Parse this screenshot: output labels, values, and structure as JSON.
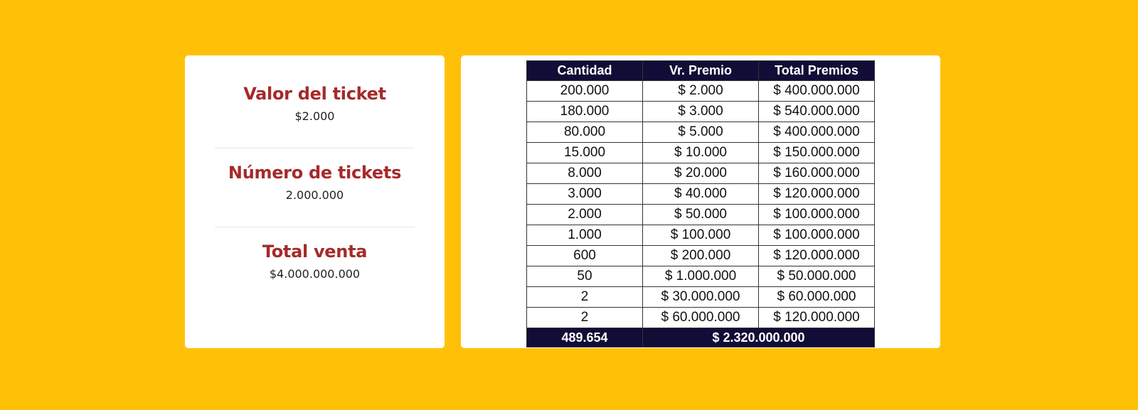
{
  "summary": [
    {
      "title": "Valor del ticket",
      "value": "$2.000"
    },
    {
      "title": "Número de tickets",
      "value": "2.000.000"
    },
    {
      "title": "Total venta",
      "value": "$4.000.000.000"
    }
  ],
  "table": {
    "headers": [
      "Cantidad",
      "Vr. Premio",
      "Total Premios"
    ],
    "rows": [
      [
        "200.000",
        "$ 2.000",
        "$ 400.000.000"
      ],
      [
        "180.000",
        "$ 3.000",
        "$ 540.000.000"
      ],
      [
        "80.000",
        "$ 5.000",
        "$ 400.000.000"
      ],
      [
        "15.000",
        "$ 10.000",
        "$ 150.000.000"
      ],
      [
        "8.000",
        "$ 20.000",
        "$ 160.000.000"
      ],
      [
        "3.000",
        "$ 40.000",
        "$ 120.000.000"
      ],
      [
        "2.000",
        "$ 50.000",
        "$ 100.000.000"
      ],
      [
        "1.000",
        "$ 100.000",
        "$ 100.000.000"
      ],
      [
        "600",
        "$ 200.000",
        "$ 120.000.000"
      ],
      [
        "50",
        "$ 1.000.000",
        "$ 50.000.000"
      ],
      [
        "2",
        "$ 30.000.000",
        "$ 60.000.000"
      ],
      [
        "2",
        "$ 60.000.000",
        "$ 120.000.000"
      ]
    ],
    "footer": {
      "total_quantity": "489.654",
      "total_prizes": "$ 2.320.000.000"
    }
  },
  "colors": {
    "background": "#ffc107",
    "title": "#a52a2a",
    "table_header": "#110d37"
  }
}
